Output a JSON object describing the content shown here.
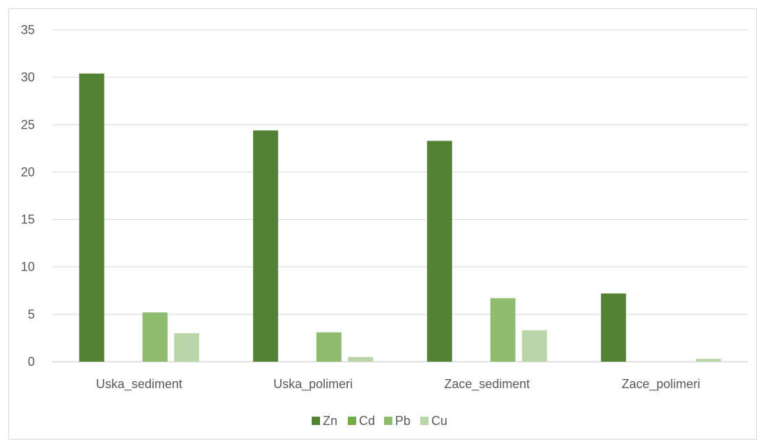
{
  "chart_data": {
    "type": "bar",
    "title": "",
    "xlabel": "",
    "ylabel": "",
    "categories": [
      "Uska_sediment",
      "Uska_polimeri",
      "Zace_sediment",
      "Zace_polimeri"
    ],
    "series": [
      {
        "name": "Zn",
        "color": "#548235",
        "values": [
          30.4,
          24.4,
          23.3,
          7.2
        ]
      },
      {
        "name": "Cd",
        "color": "#70ad47",
        "values": [
          0,
          0,
          0,
          0
        ]
      },
      {
        "name": "Pb",
        "color": "#8fbc6f",
        "values": [
          5.2,
          3.1,
          6.7,
          0
        ]
      },
      {
        "name": "Cu",
        "color": "#bad5a8",
        "values": [
          3.0,
          0.5,
          3.3,
          0.3
        ]
      }
    ],
    "ylim": [
      0,
      35
    ],
    "yticks": [
      0,
      5,
      10,
      15,
      20,
      25,
      30,
      35
    ],
    "grid": true,
    "legend": "bottom"
  }
}
